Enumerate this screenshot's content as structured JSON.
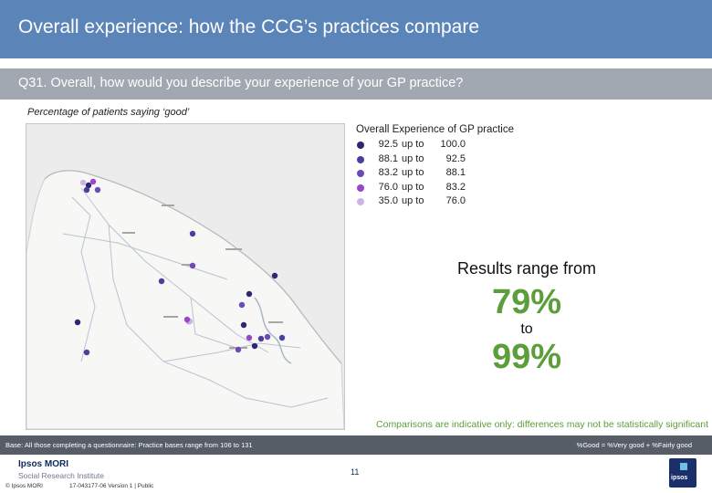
{
  "header": {
    "title": "Overall experience: how the CCG’s practices compare"
  },
  "question": {
    "text": "Q31. Overall, how would you describe your experience of your GP practice?"
  },
  "subtitle": "Percentage of patients saying ‘good’",
  "legend": {
    "title": "Overall Experience of GP practice",
    "bands": [
      {
        "from": "92.5",
        "to": "100.0",
        "color": "#2e2670"
      },
      {
        "from": "88.1",
        "to": "92.5",
        "color": "#4a3f9e"
      },
      {
        "from": "83.2",
        "to": "88.1",
        "color": "#6a4bb7"
      },
      {
        "from": "76.0",
        "to": "83.2",
        "color": "#9a46cc"
      },
      {
        "from": "35.0",
        "to": "76.0",
        "color": "#cdb3e6"
      }
    ],
    "upto_label": "up to"
  },
  "results": {
    "label": "Results range from",
    "min": "79%",
    "to": "to",
    "max": "99%",
    "accent": "#5b9e3a"
  },
  "comparison_note": "Comparisons are indicative only: differences may not be statistically significant",
  "footer": {
    "base": "Base: All those completing a questionnaire: Practice bases range from 106 to 131",
    "good_definition": "%Good = %Very good + %Fairly good",
    "page_number": "11",
    "copyright": "© Ipsos MORI",
    "job_ref": "17-043177-06 Version 1 | Public",
    "logo_name": "Ipsos MORI",
    "logo_sub": "Social Research Institute",
    "icon_label": "ipsos"
  },
  "colors": {
    "title_bar": "#5b84b8",
    "question_bar": "#a2a8b1",
    "footer_bar": "#565d66"
  }
}
